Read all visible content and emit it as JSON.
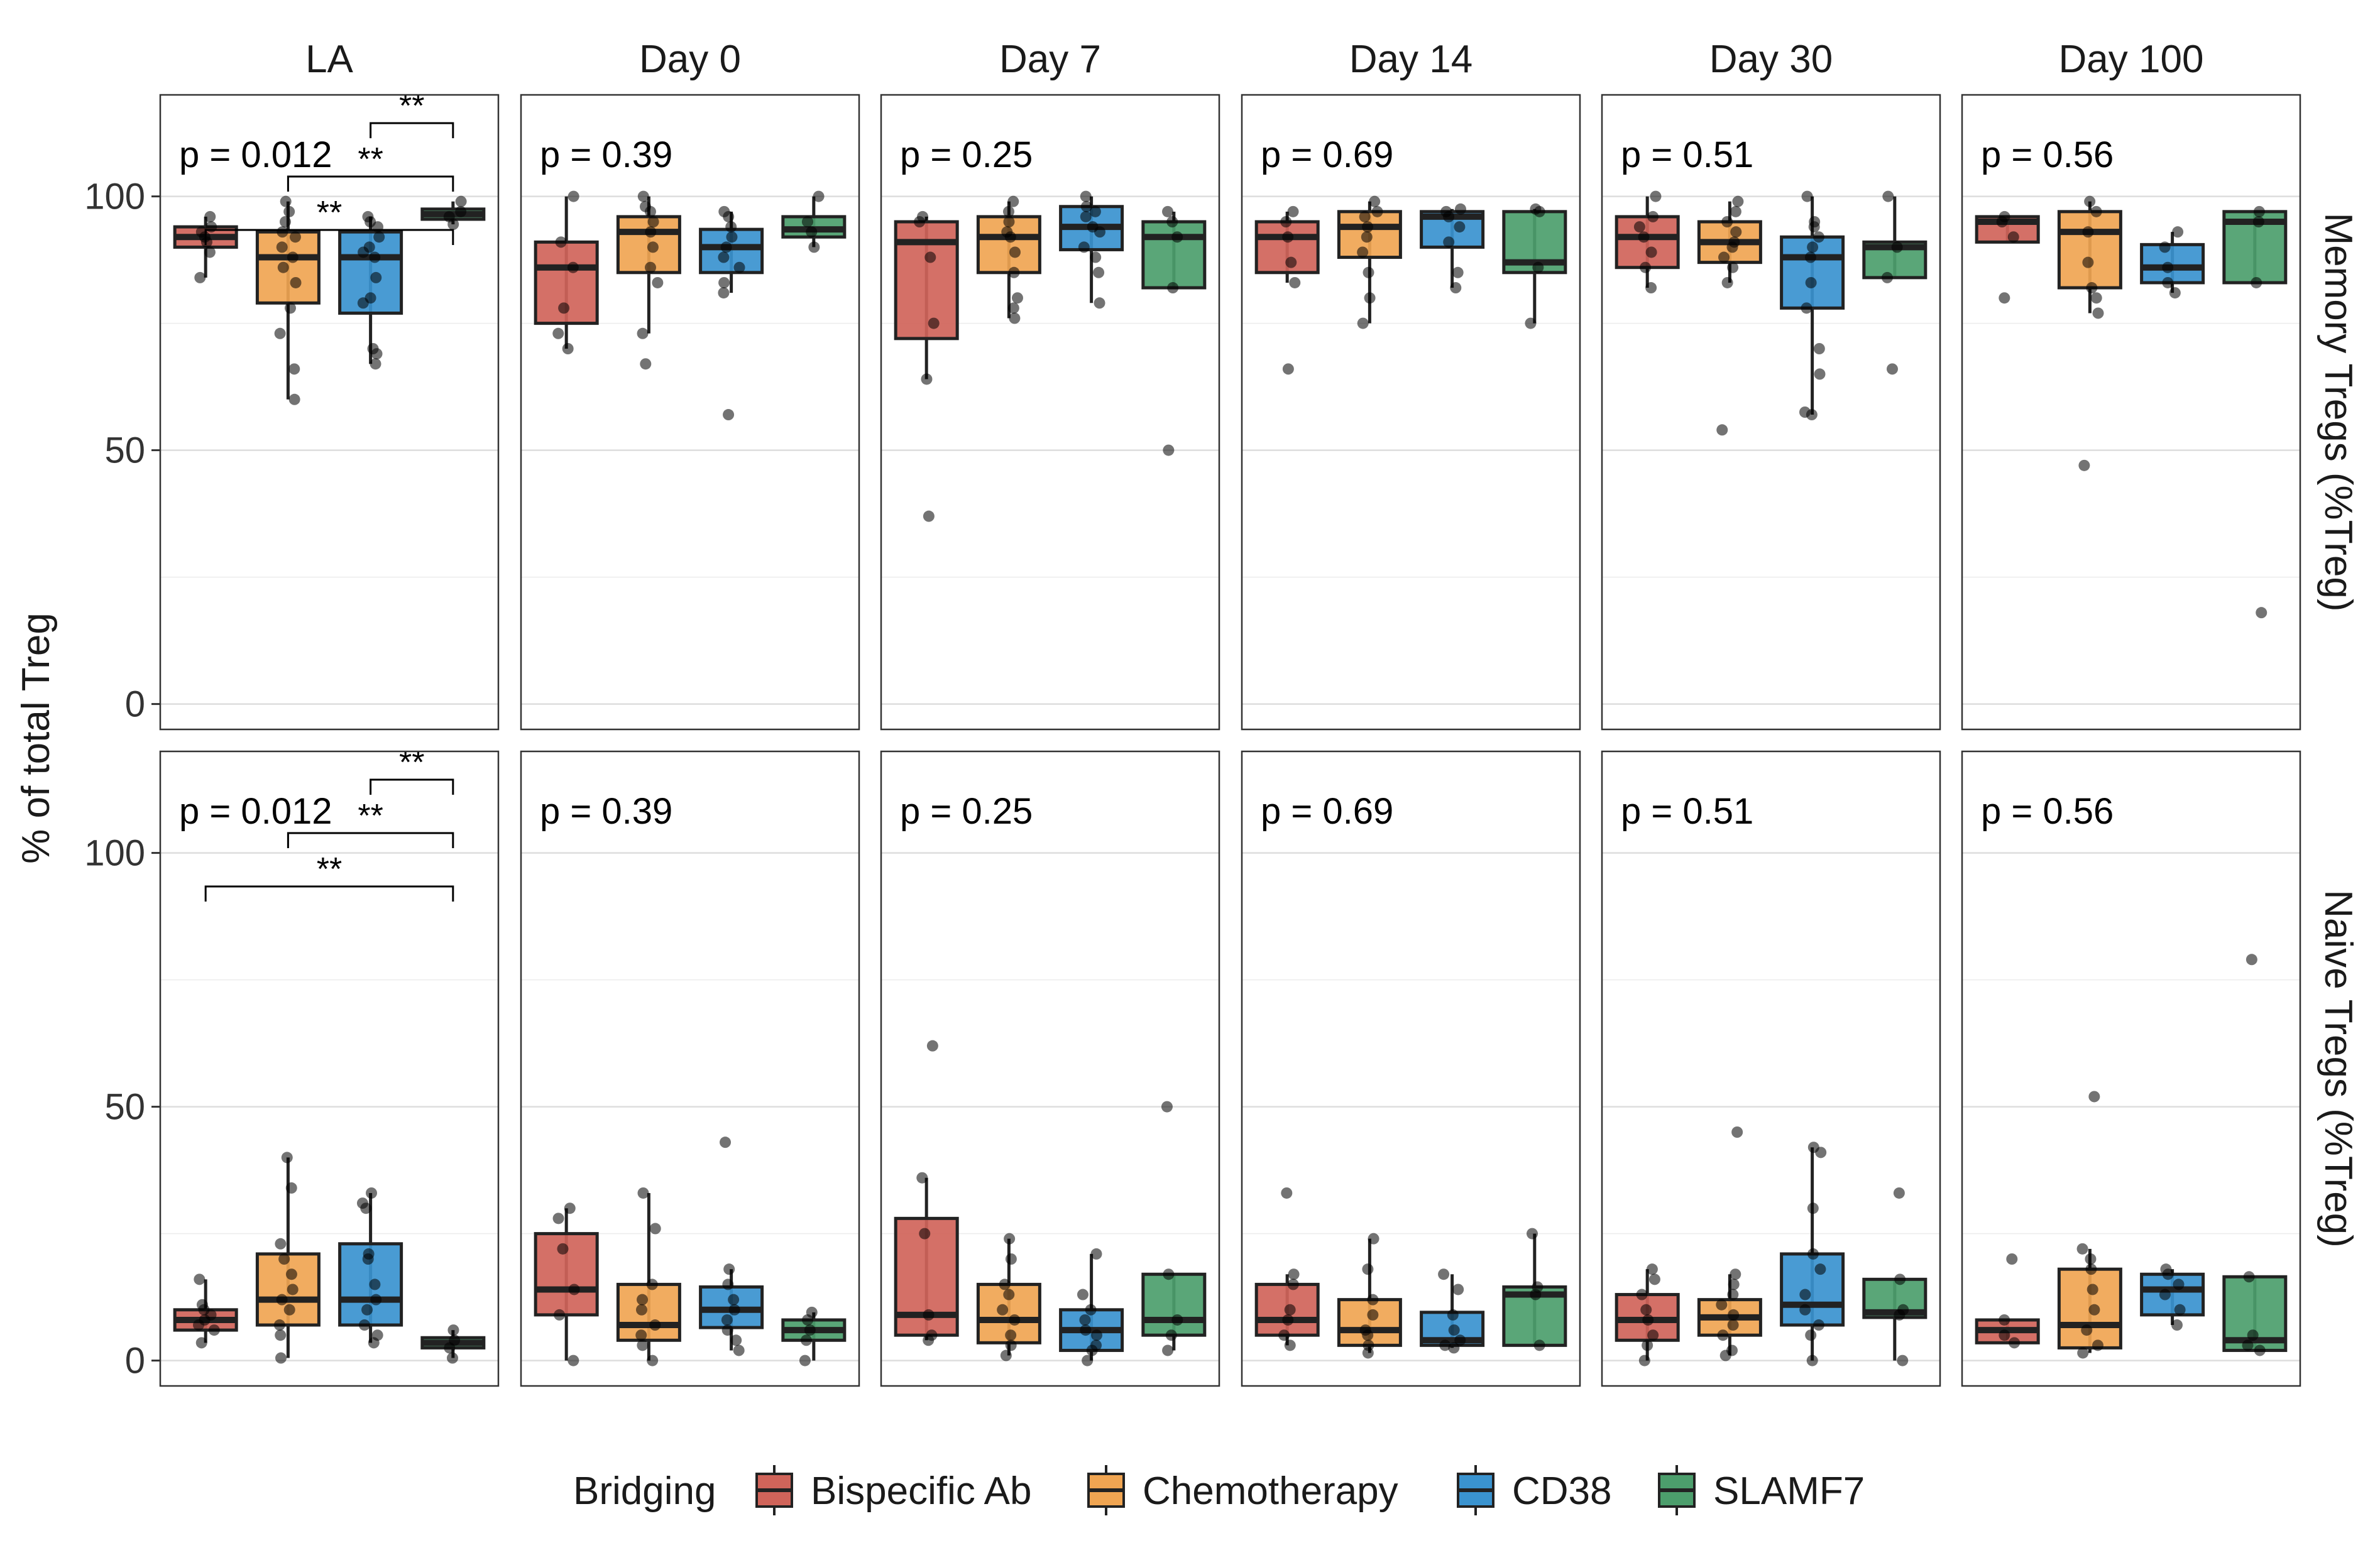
{
  "chart_data": {
    "type": "boxplot",
    "y_axis_title": "%  of total Treg",
    "ylim": [
      -5,
      120
    ],
    "y_ticks": [
      0,
      50,
      100
    ],
    "y_minor": [
      25,
      75
    ],
    "timepoints": [
      "LA",
      "Day 0",
      "Day 7",
      "Day 14",
      "Day 30",
      "Day 100"
    ],
    "rows": [
      "Memory Tregs (%Treg)",
      "Naive Tregs (%Treg)"
    ],
    "legend": {
      "title": "Bridging",
      "items": [
        {
          "name": "Bispecific Ab",
          "color": "#D0645A"
        },
        {
          "name": "Chemotherapy",
          "color": "#F0A552"
        },
        {
          "name": "CD38",
          "color": "#3A93CF"
        },
        {
          "name": "SLAMF7",
          "color": "#4C9E6C"
        }
      ]
    },
    "pvalues": [
      "p = 0.012",
      "p = 0.39",
      "p = 0.25",
      "p = 0.69",
      "p = 0.51",
      "p = 0.56"
    ],
    "significance": [
      {
        "from": 2,
        "to": 3,
        "label": "**"
      },
      {
        "from": 1,
        "to": 3,
        "label": "**"
      },
      {
        "from": 0,
        "to": 3,
        "label": "**"
      }
    ],
    "memory": [
      [
        {
          "q1": 90,
          "median": 92,
          "q3": 94,
          "lo": 84,
          "hi": 96,
          "points": [
            84,
            89,
            91,
            92,
            93,
            94,
            96
          ]
        },
        {
          "q1": 79,
          "median": 88,
          "q3": 93,
          "lo": 60,
          "hi": 99,
          "points": [
            60,
            66,
            73,
            78,
            83,
            86,
            88,
            90,
            92,
            93,
            95,
            97,
            99
          ]
        },
        {
          "q1": 77,
          "median": 88,
          "q3": 93,
          "lo": 67,
          "hi": 96,
          "points": [
            67,
            69,
            70,
            79,
            80,
            84,
            88,
            89,
            90,
            92,
            94,
            95,
            96
          ]
        },
        {
          "q1": 95.5,
          "median": 96.5,
          "q3": 97.5,
          "lo": 94.5,
          "hi": 99,
          "points": [
            94.5,
            96,
            97,
            99
          ]
        }
      ],
      [
        {
          "q1": 75,
          "median": 86,
          "q3": 91,
          "lo": 70,
          "hi": 100,
          "points": [
            70,
            73,
            78,
            86,
            91,
            100
          ]
        },
        {
          "q1": 85,
          "median": 93,
          "q3": 96,
          "lo": 73,
          "hi": 100,
          "points": [
            67,
            73,
            83,
            86,
            90,
            93,
            95,
            97,
            98,
            100
          ]
        },
        {
          "q1": 85,
          "median": 90,
          "q3": 93.5,
          "lo": 81,
          "hi": 97,
          "points": [
            57,
            81,
            83,
            86,
            88,
            90,
            92,
            94,
            96,
            97
          ]
        },
        {
          "q1": 92,
          "median": 93.5,
          "q3": 96,
          "lo": 90,
          "hi": 100,
          "points": [
            90,
            93,
            95,
            100
          ]
        }
      ],
      [
        {
          "q1": 72,
          "median": 91,
          "q3": 95,
          "lo": 64,
          "hi": 96,
          "points": [
            37,
            64,
            75,
            88,
            95,
            96
          ]
        },
        {
          "q1": 85,
          "median": 92,
          "q3": 96,
          "lo": 76,
          "hi": 99,
          "points": [
            76,
            78,
            80,
            85,
            89,
            92,
            93,
            95,
            97,
            99
          ]
        },
        {
          "q1": 89.5,
          "median": 94,
          "q3": 98,
          "lo": 79,
          "hi": 100,
          "points": [
            79,
            85,
            88,
            90,
            93,
            94,
            96,
            97,
            98,
            100
          ]
        },
        {
          "q1": 82,
          "median": 92,
          "q3": 95,
          "lo": 82,
          "hi": 97,
          "points": [
            50,
            82,
            92,
            95,
            97
          ]
        }
      ],
      [
        {
          "q1": 85,
          "median": 92,
          "q3": 95,
          "lo": 83,
          "hi": 97,
          "points": [
            66,
            83,
            87,
            92,
            95,
            97
          ]
        },
        {
          "q1": 88,
          "median": 94,
          "q3": 97,
          "lo": 75,
          "hi": 99,
          "points": [
            75,
            80,
            85,
            89,
            92,
            94,
            96,
            97,
            99
          ]
        },
        {
          "q1": 90,
          "median": 96,
          "q3": 97,
          "lo": 82,
          "hi": 97.5,
          "points": [
            82,
            85,
            91,
            94,
            96,
            97,
            97.5
          ]
        },
        {
          "q1": 85,
          "median": 87,
          "q3": 97,
          "lo": 75,
          "hi": 97.5,
          "points": [
            75,
            86,
            97,
            97.5
          ]
        }
      ],
      [
        {
          "q1": 86,
          "median": 92,
          "q3": 96,
          "lo": 82,
          "hi": 100,
          "points": [
            82,
            86,
            89,
            92,
            94,
            96,
            100
          ]
        },
        {
          "q1": 87,
          "median": 91,
          "q3": 95,
          "lo": 83,
          "hi": 99,
          "points": [
            54,
            83,
            86,
            88,
            90,
            91,
            93,
            95,
            97,
            99
          ]
        },
        {
          "q1": 78,
          "median": 88,
          "q3": 92,
          "lo": 57,
          "hi": 100,
          "points": [
            57,
            57.5,
            65,
            70,
            78,
            83,
            88,
            90,
            92,
            94,
            95,
            100
          ]
        },
        {
          "q1": 84,
          "median": 90,
          "q3": 91,
          "lo": 84,
          "hi": 100,
          "points": [
            66,
            84,
            90,
            100
          ]
        }
      ],
      [
        {
          "q1": 91,
          "median": 95,
          "q3": 96,
          "lo": 91,
          "hi": 96,
          "points": [
            80,
            92,
            95,
            96
          ]
        },
        {
          "q1": 82,
          "median": 93,
          "q3": 97,
          "lo": 77,
          "hi": 99,
          "points": [
            47,
            77,
            80,
            82,
            87,
            93,
            97,
            99
          ]
        },
        {
          "q1": 83,
          "median": 86,
          "q3": 90.5,
          "lo": 81,
          "hi": 93,
          "points": [
            81,
            83,
            86,
            90,
            93
          ]
        },
        {
          "q1": 83,
          "median": 95,
          "q3": 97,
          "lo": 83,
          "hi": 97,
          "points": [
            18,
            83,
            95,
            97
          ]
        }
      ]
    ],
    "naive": [
      [
        {
          "q1": 6,
          "median": 8,
          "q3": 10,
          "lo": 3.5,
          "hi": 16,
          "points": [
            3.5,
            6,
            7,
            8,
            9,
            10,
            11,
            16
          ]
        },
        {
          "q1": 7,
          "median": 12,
          "q3": 21,
          "lo": 0.5,
          "hi": 40,
          "points": [
            0.5,
            5,
            7,
            10,
            12,
            14,
            17,
            20,
            23,
            34,
            40
          ]
        },
        {
          "q1": 7,
          "median": 12,
          "q3": 23,
          "lo": 3.5,
          "hi": 33,
          "points": [
            3.5,
            5,
            7,
            10,
            12,
            15,
            20,
            21,
            30,
            31,
            33
          ]
        },
        {
          "q1": 2.5,
          "median": 3.5,
          "q3": 4.5,
          "lo": 0.5,
          "hi": 6,
          "points": [
            0.5,
            2.5,
            4,
            6
          ]
        }
      ],
      [
        {
          "q1": 9,
          "median": 14,
          "q3": 25,
          "lo": 0,
          "hi": 30,
          "points": [
            0,
            9,
            14,
            22,
            28,
            30
          ]
        },
        {
          "q1": 4,
          "median": 7,
          "q3": 15,
          "lo": 0,
          "hi": 33,
          "points": [
            0,
            3,
            5,
            7,
            10,
            12,
            15,
            26,
            33
          ]
        },
        {
          "q1": 6.5,
          "median": 10,
          "q3": 14.5,
          "lo": 2,
          "hi": 18,
          "points": [
            2,
            4,
            6,
            8,
            10,
            12,
            15,
            18,
            43
          ]
        },
        {
          "q1": 4,
          "median": 6,
          "q3": 8,
          "lo": 0,
          "hi": 9.5,
          "points": [
            0,
            4,
            6,
            8,
            9.5
          ]
        }
      ],
      [
        {
          "q1": 5,
          "median": 9,
          "q3": 28,
          "lo": 4,
          "hi": 36,
          "points": [
            4,
            5,
            9,
            25,
            36,
            62
          ]
        },
        {
          "q1": 3.5,
          "median": 8,
          "q3": 15,
          "lo": 1,
          "hi": 24,
          "points": [
            1,
            3,
            5,
            8,
            10,
            13,
            15,
            20,
            24
          ]
        },
        {
          "q1": 2,
          "median": 6,
          "q3": 10,
          "lo": 0,
          "hi": 21,
          "points": [
            0,
            2,
            3,
            5,
            6,
            8,
            10,
            13,
            21
          ]
        },
        {
          "q1": 5,
          "median": 8,
          "q3": 17,
          "lo": 2,
          "hi": 17,
          "points": [
            2,
            5,
            8,
            17,
            50
          ]
        }
      ],
      [
        {
          "q1": 5,
          "median": 8,
          "q3": 15,
          "lo": 3,
          "hi": 17,
          "points": [
            3,
            5,
            8,
            10,
            15,
            17,
            33
          ]
        },
        {
          "q1": 3,
          "median": 6,
          "q3": 12,
          "lo": 1.5,
          "hi": 24,
          "points": [
            1.5,
            3,
            5,
            6,
            9,
            12,
            18,
            24
          ]
        },
        {
          "q1": 3,
          "median": 4,
          "q3": 9.5,
          "lo": 2.5,
          "hi": 17,
          "points": [
            2.5,
            3,
            4,
            6,
            9,
            14,
            17
          ]
        },
        {
          "q1": 3,
          "median": 13,
          "q3": 14.5,
          "lo": 3,
          "hi": 25,
          "points": [
            3,
            13,
            14.5,
            25
          ]
        }
      ],
      [
        {
          "q1": 4,
          "median": 8,
          "q3": 13,
          "lo": 0,
          "hi": 18,
          "points": [
            0,
            3,
            5,
            8,
            10,
            13,
            16,
            18
          ]
        },
        {
          "q1": 5,
          "median": 8.5,
          "q3": 12,
          "lo": 1,
          "hi": 17,
          "points": [
            1,
            2,
            5,
            7,
            9,
            11,
            13,
            15,
            17,
            45
          ]
        },
        {
          "q1": 7,
          "median": 11,
          "q3": 21,
          "lo": 0,
          "hi": 42,
          "points": [
            0,
            5,
            7,
            10,
            13,
            18,
            21,
            30,
            41,
            42
          ]
        },
        {
          "q1": 8.5,
          "median": 9.5,
          "q3": 16,
          "lo": 0,
          "hi": 16,
          "points": [
            0,
            9,
            10,
            16,
            33
          ]
        }
      ],
      [
        {
          "q1": 3.5,
          "median": 6,
          "q3": 8,
          "lo": 3.5,
          "hi": 8,
          "points": [
            3.5,
            5,
            8,
            20
          ]
        },
        {
          "q1": 2.5,
          "median": 7,
          "q3": 18,
          "lo": 1.5,
          "hi": 22,
          "points": [
            1.5,
            3,
            6,
            10,
            14,
            18,
            20,
            22,
            52
          ]
        },
        {
          "q1": 9,
          "median": 14,
          "q3": 17,
          "lo": 7,
          "hi": 18,
          "points": [
            7,
            10,
            13,
            15,
            17,
            18
          ]
        },
        {
          "q1": 2,
          "median": 4,
          "q3": 16.5,
          "lo": 2,
          "hi": 16.5,
          "points": [
            2,
            3,
            5,
            16.5,
            79
          ]
        }
      ]
    ]
  }
}
